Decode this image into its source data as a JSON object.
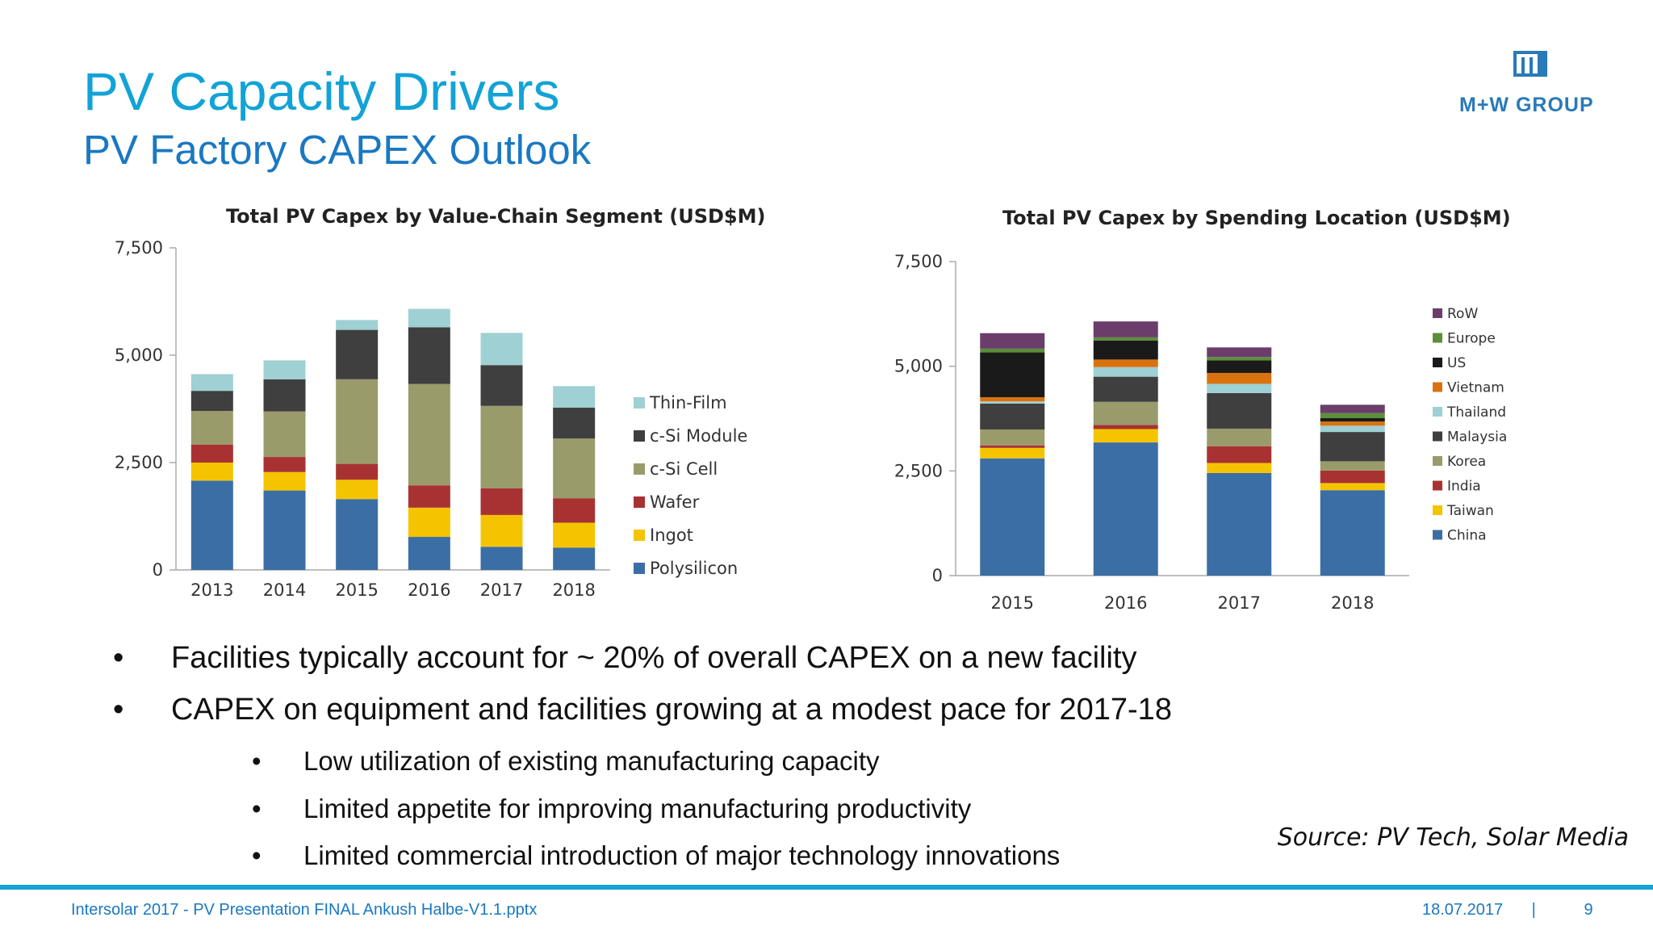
{
  "slide": {
    "title": "PV Capacity Drivers",
    "subtitle": "PV Factory CAPEX Outlook",
    "logo_text": "M+W GROUP",
    "source": "Source: PV Tech, Solar Media",
    "footer_left": "Intersolar 2017 - PV Presentation FINAL Ankush Halbe-V1.1.pptx",
    "footer_date": "18.07.2017",
    "footer_sep": "|",
    "page_number": "9",
    "colors": {
      "title": "#12a3d6",
      "subtitle": "#1a78c2",
      "footer": "#1a78c2"
    }
  },
  "bullets": [
    {
      "text": "Facilities typically account for ~ 20% of overall CAPEX on a new facility",
      "level": 1
    },
    {
      "text": "CAPEX on equipment and facilities growing at a modest pace for 2017-18",
      "level": 1
    },
    {
      "text": "Low utilization of existing manufacturing capacity",
      "level": 2
    },
    {
      "text": "Limited appetite for improving manufacturing productivity",
      "level": 2
    },
    {
      "text": "Limited commercial introduction of major technology innovations",
      "level": 2
    }
  ],
  "bullet_symbol": "•",
  "chart_data": [
    {
      "type": "bar",
      "stacked": true,
      "title": "Total PV Capex by Value-Chain Segment (USD$M)",
      "categories": [
        "2013",
        "2014",
        "2015",
        "2016",
        "2017",
        "2018"
      ],
      "ylim": [
        0,
        7500
      ],
      "yticks": [
        0,
        2500,
        5000,
        7500
      ],
      "ytick_labels": [
        "0",
        "2,500",
        "5,000",
        "7,500"
      ],
      "legend_position": "right",
      "series": [
        {
          "name": "Polysilicon",
          "color": "#3b6ea5",
          "values": [
            2080,
            1850,
            1650,
            770,
            540,
            520
          ]
        },
        {
          "name": "Ingot",
          "color": "#f5c400",
          "values": [
            420,
            430,
            450,
            680,
            740,
            580
          ]
        },
        {
          "name": "Wafer",
          "color": "#a83232",
          "values": [
            420,
            350,
            370,
            520,
            620,
            570
          ]
        },
        {
          "name": "c-Si Cell",
          "color": "#9a9b6b",
          "values": [
            780,
            1060,
            1970,
            2360,
            1920,
            1390
          ]
        },
        {
          "name": "c-Si Module",
          "color": "#3f3f3f",
          "values": [
            470,
            750,
            1150,
            1320,
            950,
            720
          ]
        },
        {
          "name": "Thin-Film",
          "color": "#9fd0d3",
          "values": [
            390,
            440,
            230,
            430,
            750,
            500
          ]
        }
      ]
    },
    {
      "type": "bar",
      "stacked": true,
      "title": "Total PV Capex by Spending Location (USD$M)",
      "categories": [
        "2015",
        "2016",
        "2017",
        "2018"
      ],
      "ylim": [
        0,
        7500
      ],
      "yticks": [
        0,
        2500,
        5000,
        7500
      ],
      "ytick_labels": [
        "0",
        "2,500",
        "5,000",
        "7,500"
      ],
      "legend_position": "right",
      "series": [
        {
          "name": "China",
          "color": "#3b6ea5",
          "values": [
            2800,
            3180,
            2450,
            2040
          ]
        },
        {
          "name": "Taiwan",
          "color": "#f5c400",
          "values": [
            250,
            320,
            240,
            170
          ]
        },
        {
          "name": "India",
          "color": "#a83232",
          "values": [
            60,
            100,
            400,
            300
          ]
        },
        {
          "name": "Korea",
          "color": "#9a9b6b",
          "values": [
            380,
            550,
            420,
            220
          ]
        },
        {
          "name": "Malaysia",
          "color": "#3f3f3f",
          "values": [
            620,
            600,
            850,
            700
          ]
        },
        {
          "name": "Thailand",
          "color": "#9fd0d3",
          "values": [
            50,
            230,
            220,
            150
          ]
        },
        {
          "name": "Vietnam",
          "color": "#d9720e",
          "values": [
            100,
            180,
            260,
            100
          ]
        },
        {
          "name": "US",
          "color": "#1a1a1a",
          "values": [
            1070,
            450,
            300,
            80
          ]
        },
        {
          "name": "Europe",
          "color": "#5c8f3a",
          "values": [
            90,
            80,
            80,
            120
          ]
        },
        {
          "name": "RoW",
          "color": "#6a3d6b",
          "values": [
            370,
            380,
            230,
            200
          ]
        }
      ]
    }
  ]
}
